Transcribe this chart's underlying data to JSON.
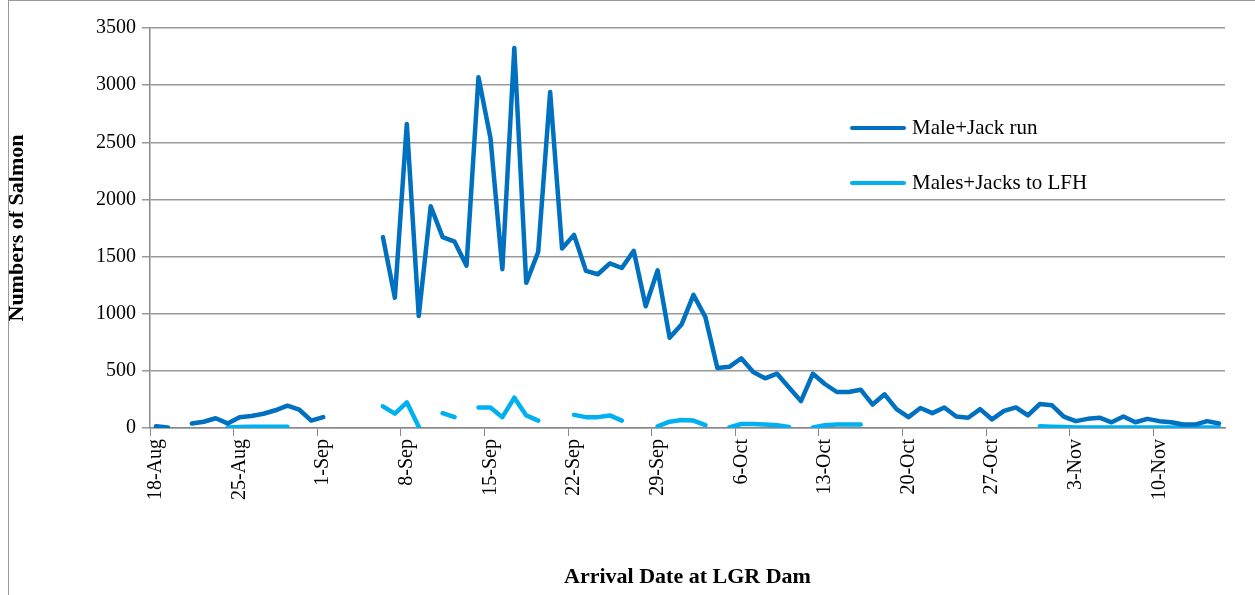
{
  "chart_data": {
    "type": "line",
    "xlabel": "Arrival Date at LGR Dam",
    "ylabel": "Numbers of Salmon",
    "categories": [
      "18-Aug",
      null,
      null,
      null,
      null,
      null,
      null,
      "25-Aug",
      null,
      null,
      null,
      null,
      null,
      null,
      "1-Sep",
      null,
      null,
      null,
      null,
      null,
      null,
      "8-Sep",
      null,
      null,
      null,
      null,
      null,
      null,
      "15-Sep",
      null,
      null,
      null,
      null,
      null,
      null,
      "22-Sep",
      null,
      null,
      null,
      null,
      null,
      null,
      "29-Sep",
      null,
      null,
      null,
      null,
      null,
      null,
      "6-Oct",
      null,
      null,
      null,
      null,
      null,
      null,
      "13-Oct",
      null,
      null,
      null,
      null,
      null,
      null,
      "20-Oct",
      null,
      null,
      null,
      null,
      null,
      null,
      "27-Oct",
      null,
      null,
      null,
      null,
      null,
      null,
      "3-Nov",
      null,
      null,
      null,
      null,
      null,
      null,
      "10-Nov",
      null,
      null,
      null,
      null,
      null
    ],
    "series": [
      {
        "name": "Male+Jack run",
        "color": "#0070c0",
        "values": [
          15,
          5,
          null,
          40,
          55,
          85,
          40,
          95,
          105,
          125,
          155,
          195,
          160,
          65,
          95,
          null,
          null,
          null,
          null,
          1670,
          1140,
          2660,
          980,
          1940,
          1670,
          1630,
          1420,
          3070,
          2540,
          1390,
          3325,
          1270,
          1540,
          2940,
          1570,
          1690,
          1375,
          1345,
          1440,
          1400,
          1550,
          1065,
          1380,
          790,
          905,
          1165,
          970,
          525,
          535,
          610,
          490,
          435,
          475,
          355,
          235,
          475,
          385,
          315,
          315,
          335,
          205,
          295,
          165,
          95,
          175,
          130,
          180,
          100,
          90,
          165,
          75,
          150,
          180,
          110,
          210,
          200,
          100,
          60,
          80,
          90,
          50,
          100,
          50,
          80,
          60,
          50,
          30,
          30,
          60,
          40
        ]
      },
      {
        "name": "Males+Jacks to LFH",
        "color": "#00b0f0",
        "values": [
          null,
          null,
          null,
          null,
          null,
          null,
          5,
          8,
          10,
          10,
          10,
          10,
          null,
          null,
          null,
          null,
          null,
          null,
          null,
          190,
          125,
          225,
          10,
          null,
          130,
          95,
          null,
          180,
          180,
          95,
          265,
          110,
          65,
          null,
          null,
          115,
          95,
          95,
          110,
          65,
          null,
          null,
          15,
          55,
          70,
          65,
          25,
          null,
          5,
          35,
          35,
          30,
          25,
          10,
          null,
          5,
          25,
          30,
          30,
          30,
          null,
          null,
          null,
          null,
          null,
          null,
          null,
          null,
          null,
          null,
          null,
          null,
          null,
          null,
          15,
          12,
          8,
          5,
          5,
          5,
          5,
          5,
          5,
          5,
          5,
          5,
          5,
          5,
          5,
          5
        ]
      }
    ],
    "ylim": [
      0,
      3500
    ],
    "yticks": [
      0,
      500,
      1000,
      1500,
      2000,
      2500,
      3000,
      3500
    ],
    "grid": "y",
    "legend": "top right",
    "marker": "none",
    "line_style": "solid"
  }
}
